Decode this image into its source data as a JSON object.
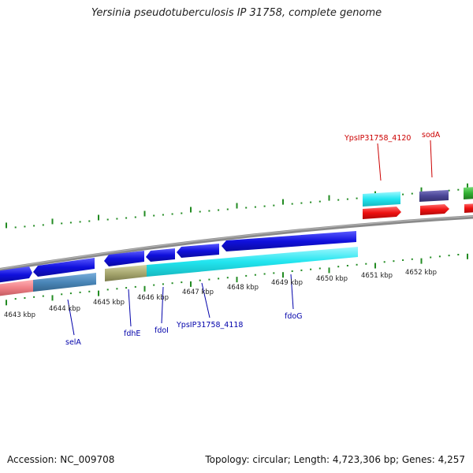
{
  "title": "Yersinia pseudotuberculosis IP 31758, complete genome",
  "footer": {
    "accession": "Accession: NC_009708",
    "topology": "Topology: circular; Length: 4,723,306 bp; Genes: 4,257"
  },
  "scale": {
    "ticks": [
      "4643 kbp",
      "4644 kbp",
      "4645 kbp",
      "4646 kbp",
      "4647 kbp",
      "4648 kbp",
      "4649 kbp",
      "4650 kbp",
      "4651 kbp",
      "4652 kbp"
    ]
  },
  "labels": {
    "selA": "selA",
    "fdhE": "fdhE",
    "fdoI": "fdoI",
    "YpsIP31758_4118": "YpsIP31758_4118",
    "fdoG": "fdoG",
    "YpsIP31758_4120": "YpsIP31758_4120",
    "sodA": "sodA"
  },
  "colors": {
    "reverse_label": "#0000aa",
    "forward_label": "#cc0000",
    "tick": "#228b22",
    "backbone": "#888888",
    "gene_blue": "#1010dd",
    "gene_cyan": "#22e5ef",
    "gene_red": "#ee1111",
    "gene_purple": "#4a4696",
    "gene_green": "#33b033",
    "gene_steelblue": "#4a86b8",
    "gene_salmon": "#ef7f86",
    "gene_olive": "#a8a870"
  }
}
